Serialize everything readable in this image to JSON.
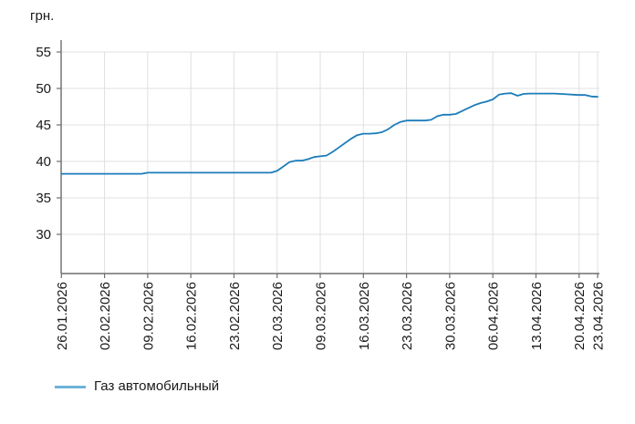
{
  "chart_data": {
    "type": "line",
    "title": "",
    "ylabel": "грн.",
    "xlabel": "",
    "y_ticks": [
      30,
      35,
      40,
      45,
      50,
      55
    ],
    "ylim_axis": [
      24.6,
      57
    ],
    "grid": true,
    "legend_position": "bottom-left",
    "x_tick_labels": [
      "26.01.2026",
      "02.02.2026",
      "09.02.2026",
      "16.02.2026",
      "23.02.2026",
      "02.03.2026",
      "09.03.2026",
      "16.03.2026",
      "23.03.2026",
      "30.03.2026",
      "06.04.2026",
      "13.04.2026",
      "20.04.2026",
      "23.04.2026"
    ],
    "x_tick_days": [
      0,
      7,
      14,
      21,
      28,
      35,
      42,
      49,
      56,
      63,
      70,
      77,
      84,
      87
    ],
    "x_start_date": "26.01.2026",
    "x_step": "1 day",
    "series": [
      {
        "name": "Газ автомобильный",
        "line_color": "#1c7cba",
        "legend_color": "#6db3d9",
        "values": [
          38.3,
          38.3,
          38.3,
          38.3,
          38.3,
          38.3,
          38.3,
          38.3,
          38.3,
          38.3,
          38.3,
          38.3,
          38.3,
          38.3,
          38.45,
          38.45,
          38.45,
          38.45,
          38.45,
          38.45,
          38.45,
          38.45,
          38.45,
          38.45,
          38.45,
          38.45,
          38.45,
          38.45,
          38.45,
          38.45,
          38.45,
          38.45,
          38.45,
          38.45,
          38.45,
          38.7,
          39.3,
          39.9,
          40.1,
          40.1,
          40.3,
          40.6,
          40.7,
          40.8,
          41.3,
          41.9,
          42.5,
          43.1,
          43.6,
          43.8,
          43.8,
          43.85,
          44.0,
          44.4,
          45.0,
          45.4,
          45.6,
          45.6,
          45.6,
          45.6,
          45.7,
          46.2,
          46.4,
          46.4,
          46.5,
          46.9,
          47.3,
          47.7,
          48.0,
          48.2,
          48.5,
          49.15,
          49.3,
          49.35,
          49.0,
          49.25,
          49.3,
          49.3,
          49.3,
          49.3,
          49.3,
          49.25,
          49.2,
          49.15,
          49.1,
          49.1,
          48.9,
          48.85
        ]
      }
    ]
  },
  "legend": {
    "label": "Газ автомобильный"
  },
  "colors": {
    "line": "#1c7cba",
    "legend_line": "#6db3d9",
    "grid": "#e0e0e0",
    "axis": "#6e6e6e",
    "text": "#1a1a1a",
    "background": "#ffffff"
  }
}
